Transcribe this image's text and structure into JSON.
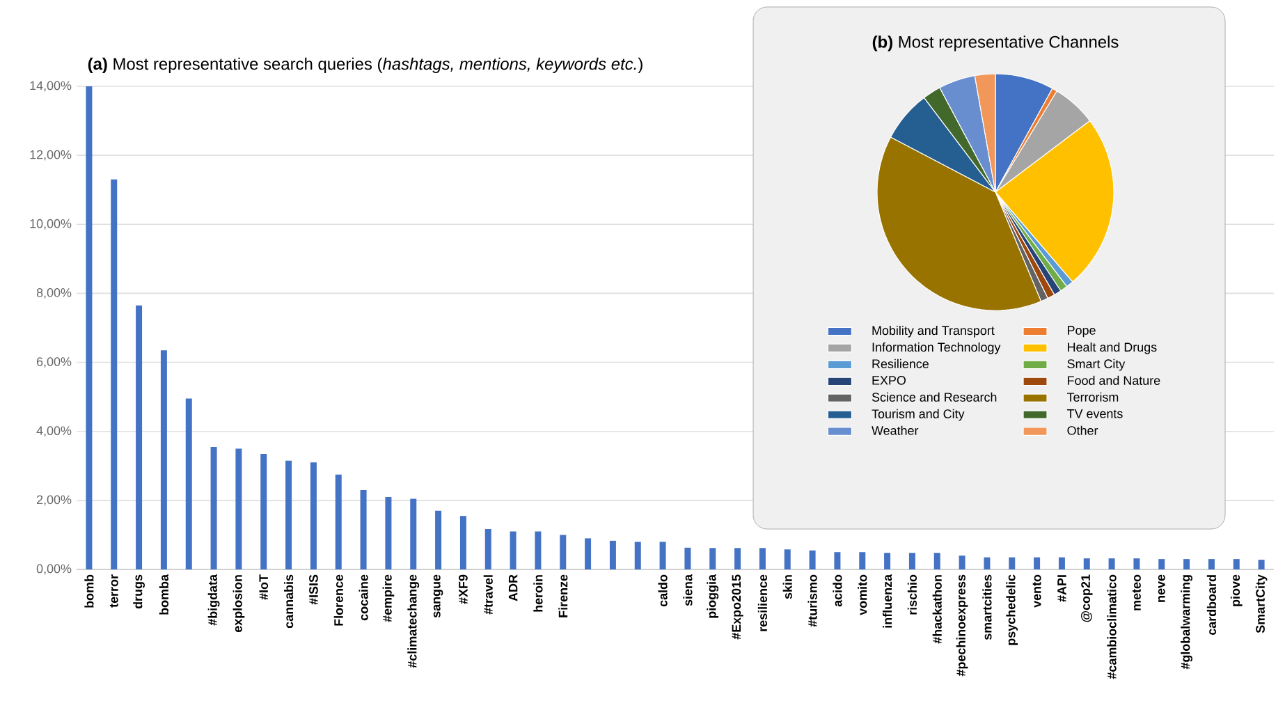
{
  "chart_data": [
    {
      "type": "bar",
      "title": "**(a)** Most representative search queries (*hashtags, mentions, keywords etc.*)",
      "categories": [
        "bomb",
        "terror",
        "drugs",
        "bomba",
        null,
        "#bigdata",
        "explosion",
        "#IoT",
        "cannabis",
        "#ISIS",
        "Florence",
        "cocaine",
        "#empire",
        "#climatechange",
        "sangue",
        "#XF9",
        "#travel",
        "ADR",
        "heroin",
        "Firenze",
        null,
        null,
        null,
        "caldo",
        "siena",
        "pioggia",
        "#Expo2015",
        "resilience",
        "skin",
        "#turismo",
        "acido",
        "vomito",
        "influenza",
        "rischio",
        "#hackathon",
        "#pechinoexpress",
        "smartcities",
        "psychedelic",
        "vento",
        "#API",
        "@cop21",
        "#cambioclimatico",
        "meteo",
        "neve",
        "#globalwarming",
        "cardboard",
        "piove",
        "SmartCity"
      ],
      "values": [
        14.0,
        11.3,
        7.65,
        6.35,
        4.95,
        3.55,
        3.5,
        3.35,
        3.15,
        3.1,
        2.75,
        2.3,
        2.1,
        2.05,
        1.7,
        1.55,
        1.17,
        1.1,
        1.1,
        1.0,
        0.9,
        0.83,
        0.8,
        0.8,
        0.63,
        0.62,
        0.62,
        0.62,
        0.58,
        0.55,
        0.5,
        0.5,
        0.48,
        0.48,
        0.48,
        0.4,
        0.35,
        0.35,
        0.35,
        0.35,
        0.32,
        0.32,
        0.32,
        0.3,
        0.3,
        0.3,
        0.3,
        0.28
      ],
      "color": "#4472c4",
      "ylim": [
        0,
        14
      ],
      "yticks": [
        {
          "value": 0,
          "label": "0,00%"
        },
        {
          "value": 2,
          "label": "2,00%"
        },
        {
          "value": 4,
          "label": "4,00%"
        },
        {
          "value": 6,
          "label": "6,00%"
        },
        {
          "value": 8,
          "label": "8,00%"
        },
        {
          "value": 10,
          "label": "10,00%"
        },
        {
          "value": 12,
          "label": "12,00%"
        },
        {
          "value": 14,
          "label": "14,00%"
        }
      ],
      "grid": "y"
    },
    {
      "type": "pie",
      "title": "**(b)** Most representative Channels",
      "categories": [
        "Mobility and Transport",
        "Pope",
        "Information Technology",
        "Healt and Drugs",
        "Resilience",
        "Smart City",
        "EXPO",
        "Food and Nature",
        "Science and Research",
        "Terrorism",
        "Tourism and City",
        "TV events",
        "Weather",
        "Other"
      ],
      "values": [
        8,
        0.7,
        6,
        24,
        1,
        1,
        1,
        1,
        1,
        39,
        7,
        2.5,
        5,
        2.8
      ],
      "colors": [
        "#4472c4",
        "#ed7d31",
        "#a5a5a5",
        "#ffc000",
        "#5b9bd5",
        "#70ad47",
        "#264478",
        "#9e480e",
        "#636363",
        "#997300",
        "#255e91",
        "#43682b",
        "#698ed0",
        "#f1975a"
      ],
      "legend": "bottom"
    }
  ]
}
